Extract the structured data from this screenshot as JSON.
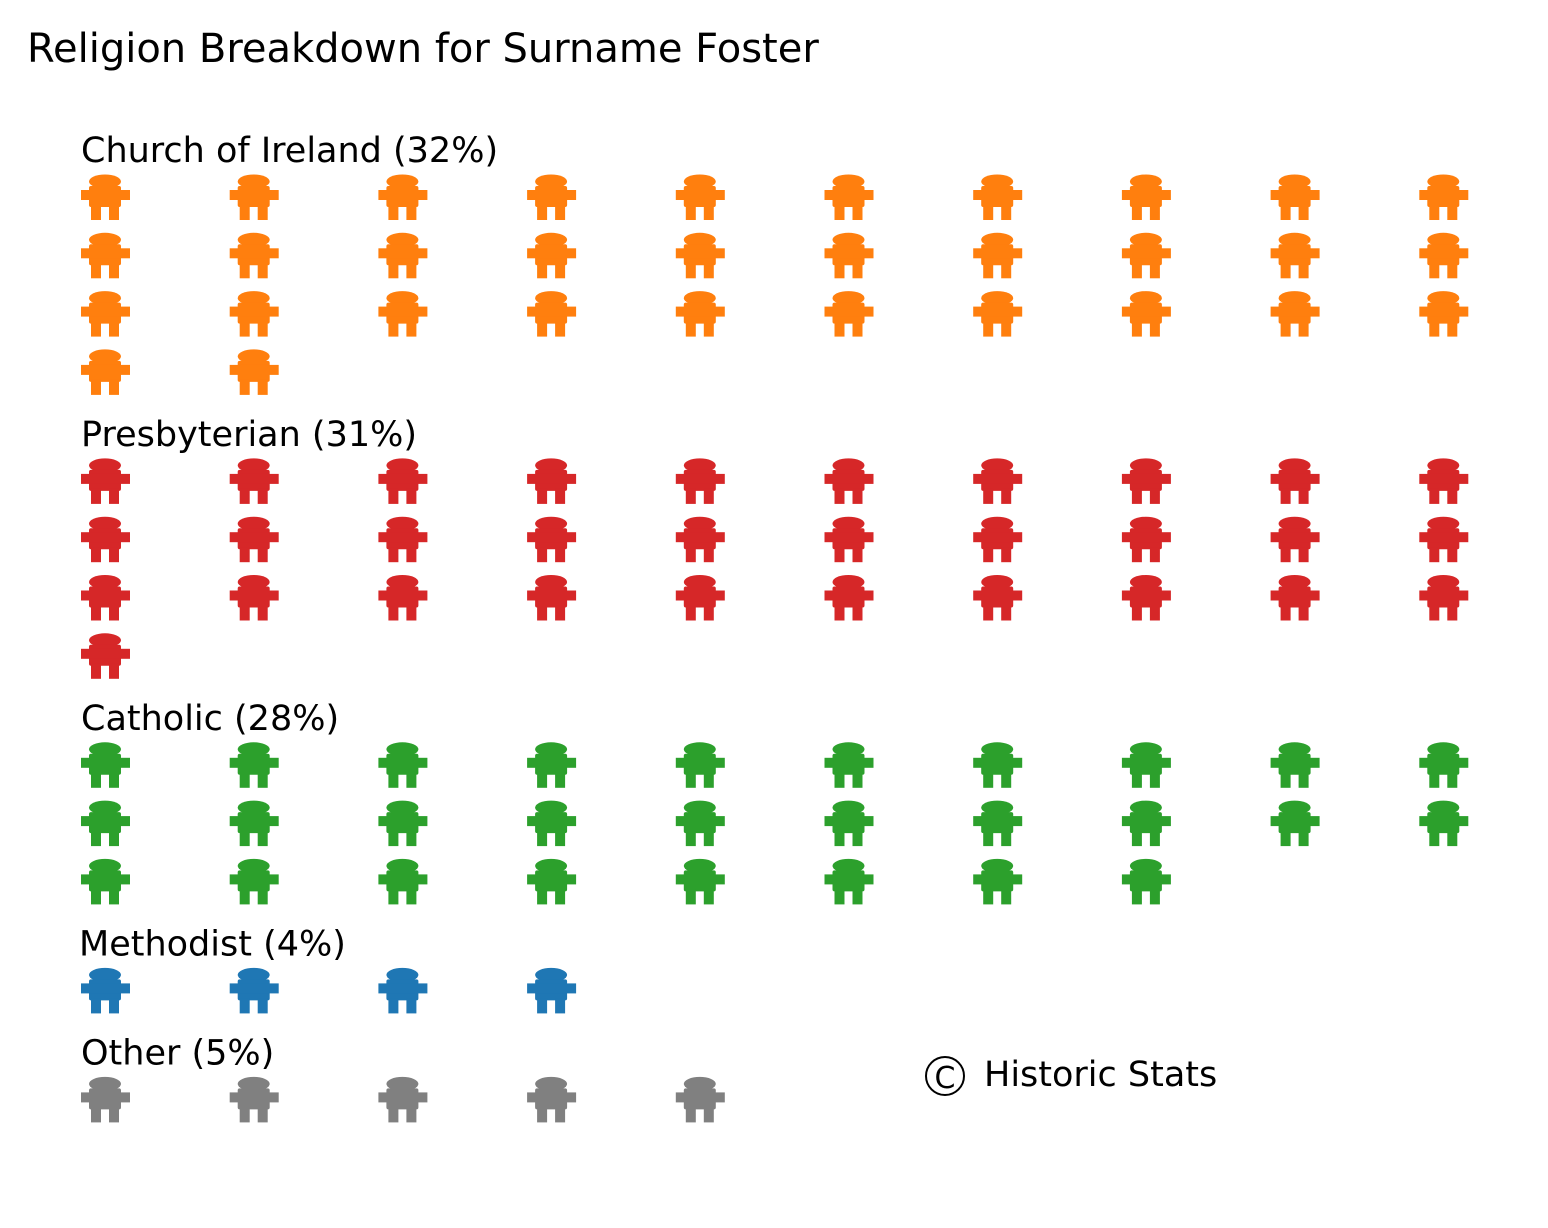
{
  "chart_data": {
    "type": "pictograph",
    "title": "Religion Breakdown for Surname Foster",
    "icon": "person-icon",
    "groups": [
      {
        "label": "Church of Ireland (32%)",
        "name": "Church of Ireland",
        "percent": 32,
        "icon_count": 32,
        "color": "#ff7f0e"
      },
      {
        "label": "Presbyterian (31%)",
        "name": "Presbyterian",
        "percent": 31,
        "icon_count": 31,
        "color": "#d62728"
      },
      {
        "label": "Catholic (28%)",
        "name": "Catholic",
        "percent": 28,
        "icon_count": 28,
        "color": "#2ca02c"
      },
      {
        "label": "Methodist (4%)",
        "name": "Methodist",
        "percent": 4,
        "icon_count": 4,
        "color": "#1f77b4"
      },
      {
        "label": "Other (5%)",
        "name": "Other",
        "percent": 5,
        "icon_count": 5,
        "color": "#808080"
      }
    ],
    "credit": "Historic Stats",
    "credit_symbol": "©"
  }
}
